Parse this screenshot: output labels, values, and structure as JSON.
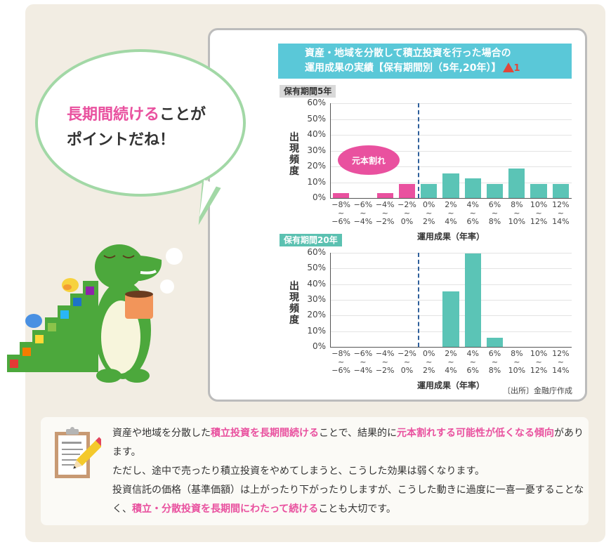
{
  "speech_bubble": {
    "highlight": "長期間続ける",
    "line1_rest": "ことが",
    "line2": "ポイントだね！"
  },
  "chart_card": {
    "title_line1": "資産・地域を分散して積立投資を行った場合の",
    "title_line2": "運用成果の実績【保有期間別（5年,20年）】",
    "warning_icon": "warning-triangle-icon",
    "warning_number": "1",
    "burst_label": "元本割れ",
    "source": "〔出所〕金融庁作成",
    "colors": {
      "loss": "#e9519f",
      "gain": "#5bc4b6",
      "title_band": "#5ac8d8",
      "divider": "#2e5f9b"
    }
  },
  "chart_data": [
    {
      "type": "bar",
      "title": "保有期間5年",
      "xlabel": "運用成果（年率）",
      "ylabel": "出現頻度",
      "ylim": [
        0,
        60
      ],
      "yticks": [
        "0%",
        "10%",
        "20%",
        "30%",
        "40%",
        "50%",
        "60%"
      ],
      "categories": [
        "-8%~-6%",
        "-6%~-4%",
        "-4%~-2%",
        "-2%~0%",
        "0%~2%",
        "2%~4%",
        "4%~6%",
        "6%~8%",
        "8%~10%",
        "10%~12%",
        "12%~14%"
      ],
      "category_top": [
        "−8%",
        "−6%",
        "−4%",
        "−2%",
        "0%",
        "2%",
        "4%",
        "6%",
        "8%",
        "10%",
        "12%"
      ],
      "category_bottom": [
        "−6%",
        "−4%",
        "−2%",
        "0%",
        "2%",
        "4%",
        "6%",
        "8%",
        "10%",
        "12%",
        "14%"
      ],
      "values": [
        3,
        0,
        3,
        9,
        9,
        15.5,
        12.5,
        9,
        18.5,
        9,
        9
      ],
      "annotation": "元本割れ",
      "grid": true
    },
    {
      "type": "bar",
      "title": "保有期間20年",
      "xlabel": "運用成果（年率）",
      "ylabel": "出現頻度",
      "ylim": [
        0,
        60
      ],
      "yticks": [
        "0%",
        "10%",
        "20%",
        "30%",
        "40%",
        "50%",
        "60%"
      ],
      "categories": [
        "-8%~-6%",
        "-6%~-4%",
        "-4%~-2%",
        "-2%~0%",
        "0%~2%",
        "2%~4%",
        "4%~6%",
        "6%~8%",
        "8%~10%",
        "10%~12%",
        "12%~14%"
      ],
      "category_top": [
        "−8%",
        "−6%",
        "−4%",
        "−2%",
        "0%",
        "2%",
        "4%",
        "6%",
        "8%",
        "10%",
        "12%"
      ],
      "category_bottom": [
        "−6%",
        "−4%",
        "−2%",
        "0%",
        "2%",
        "4%",
        "6%",
        "8%",
        "10%",
        "12%",
        "14%"
      ],
      "values": [
        0,
        0,
        0,
        0,
        0,
        35.5,
        59.5,
        6,
        0,
        0,
        0
      ],
      "grid": true
    }
  ],
  "note": {
    "icon": "clipboard-pencil-icon",
    "p1_a": "資産や地域を分散した",
    "p1_b": "積立投資を長期間続ける",
    "p1_c": "ことで、結果的に",
    "p1_d": "元本割れする可能性が低くなる傾向",
    "p1_e": "があります。",
    "p2": "ただし、途中で売ったり積立投資をやめてしまうと、こうした効果は弱くなります。",
    "p3": "投資信託の価格（基準価額）は上がったり下がったりしますが、こうした動きに過度に一喜一憂することなく、",
    "p3_hl": "積立・分散投資を長期間にわたって続ける",
    "p3_end": "ことも大切です。"
  },
  "mascot": {
    "description": "green crocodile holding coffee mug with birds on rainbow staircase"
  }
}
